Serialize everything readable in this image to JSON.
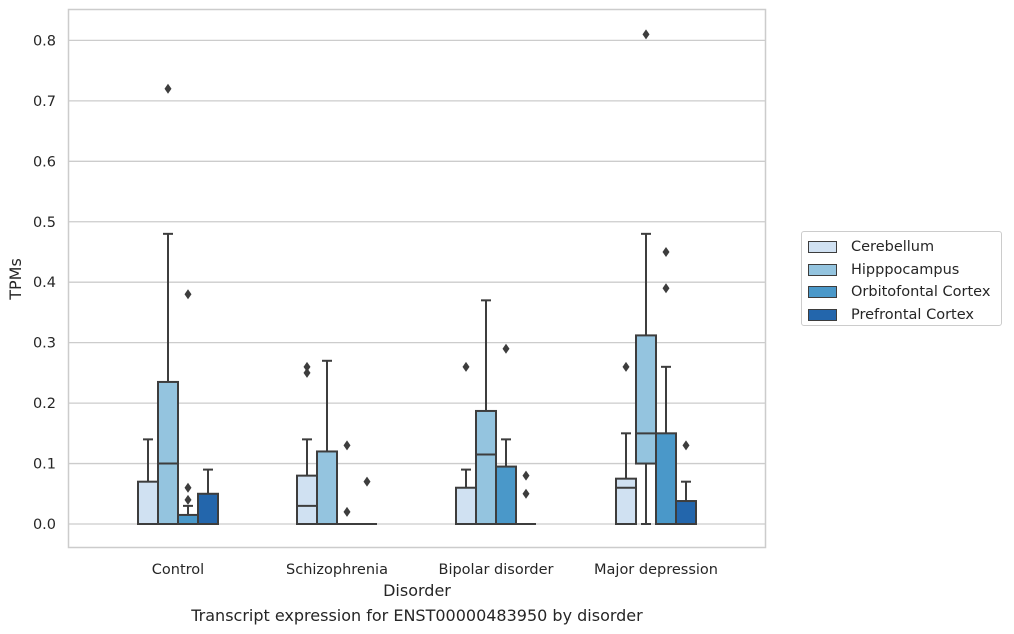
{
  "chart_data": {
    "type": "box",
    "xlabel": "Disorder",
    "ylabel": "TPMs",
    "ylim": [
      -0.04,
      0.85
    ],
    "yticks": [
      "0.0",
      "0.1",
      "0.2",
      "0.3",
      "0.4",
      "0.5",
      "0.6",
      "0.7",
      "0.8"
    ],
    "grid": true,
    "legend_placement": "right",
    "categories": [
      "Control",
      "Schizophrenia",
      "Bipolar disorder",
      "Major depression"
    ],
    "series": [
      {
        "name": "Cerebellum",
        "color": "#d0e1f2",
        "boxes": [
          {
            "q1": 0,
            "median": 0,
            "q3": 0.07,
            "whisker_low": 0,
            "whisker_high": 0.14,
            "outliers": []
          },
          {
            "q1": 0,
            "median": 0.03,
            "q3": 0.08,
            "whisker_low": 0,
            "whisker_high": 0.14,
            "outliers": [
              0.25,
              0.26
            ]
          },
          {
            "q1": 0,
            "median": 0,
            "q3": 0.06,
            "whisker_low": 0,
            "whisker_high": 0.09,
            "outliers": [
              0.26
            ]
          },
          {
            "q1": 0,
            "median": 0.06,
            "q3": 0.075,
            "whisker_low": 0,
            "whisker_high": 0.15,
            "outliers": [
              0.26
            ]
          }
        ]
      },
      {
        "name": "Hipppocampus",
        "color": "#94c4df",
        "boxes": [
          {
            "q1": 0,
            "median": 0.1,
            "q3": 0.235,
            "whisker_low": 0,
            "whisker_high": 0.48,
            "outliers": [
              0.72
            ]
          },
          {
            "q1": 0,
            "median": 0,
            "q3": 0.12,
            "whisker_low": 0,
            "whisker_high": 0.27,
            "outliers": []
          },
          {
            "q1": 0,
            "median": 0.115,
            "q3": 0.187,
            "whisker_low": 0,
            "whisker_high": 0.37,
            "outliers": []
          },
          {
            "q1": 0.1,
            "median": 0.15,
            "q3": 0.312,
            "whisker_low": 0,
            "whisker_high": 0.48,
            "outliers": [
              0.81
            ]
          }
        ]
      },
      {
        "name": "Orbitofontal Cortex",
        "color": "#4a98c9",
        "boxes": [
          {
            "q1": 0,
            "median": 0,
            "q3": 0.015,
            "whisker_low": 0,
            "whisker_high": 0.03,
            "outliers": [
              0.04,
              0.06,
              0.38
            ]
          },
          {
            "q1": 0,
            "median": 0,
            "q3": 0,
            "whisker_low": 0,
            "whisker_high": 0,
            "outliers": [
              0.02,
              0.13
            ]
          },
          {
            "q1": 0,
            "median": 0,
            "q3": 0.095,
            "whisker_low": 0,
            "whisker_high": 0.14,
            "outliers": [
              0.29
            ]
          },
          {
            "q1": 0,
            "median": 0,
            "q3": 0.15,
            "whisker_low": 0,
            "whisker_high": 0.26,
            "outliers": [
              0.39,
              0.45
            ]
          }
        ]
      },
      {
        "name": "Prefrontal Cortex",
        "color": "#2366ac",
        "boxes": [
          {
            "q1": 0,
            "median": 0,
            "q3": 0.05,
            "whisker_low": 0,
            "whisker_high": 0.09,
            "outliers": []
          },
          {
            "q1": 0,
            "median": 0,
            "q3": 0,
            "whisker_low": 0,
            "whisker_high": 0,
            "outliers": [
              0.07
            ]
          },
          {
            "q1": 0,
            "median": 0,
            "q3": 0,
            "whisker_low": 0,
            "whisker_high": 0,
            "outliers": [
              0.05,
              0.08
            ]
          },
          {
            "q1": 0,
            "median": 0,
            "q3": 0.038,
            "whisker_low": 0,
            "whisker_high": 0.07,
            "outliers": [
              0.13
            ]
          }
        ]
      }
    ],
    "caption": "Transcript expression for ENST00000483950 by disorder"
  }
}
